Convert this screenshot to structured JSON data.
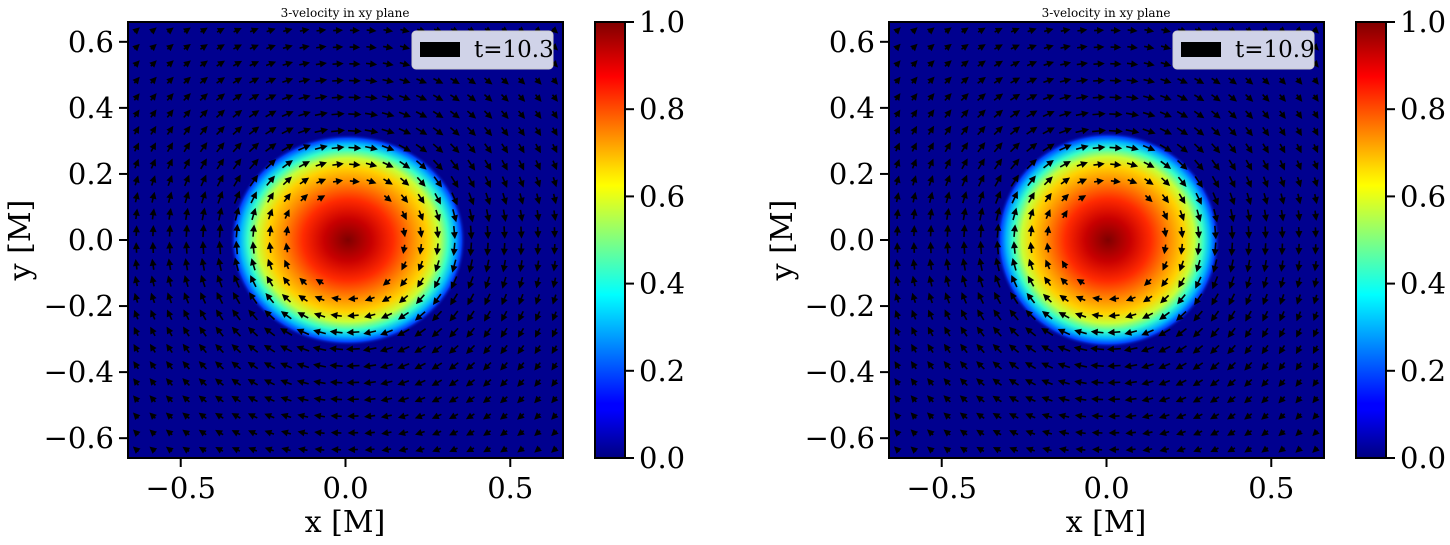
{
  "chart_data": [
    {
      "type": "heatmap",
      "subtype": "quiver",
      "title": "3-velocity in xy plane",
      "xlabel": "x [M]",
      "ylabel": "y [M]",
      "xlim": [
        -0.66,
        0.66
      ],
      "ylim": [
        -0.66,
        0.66
      ],
      "xticks": [
        -0.5,
        0.0,
        0.5
      ],
      "xtick_labels": [
        "−0.5",
        "0.0",
        "0.5"
      ],
      "yticks": [
        0.6,
        0.4,
        0.2,
        0.0,
        -0.2,
        -0.4,
        -0.6
      ],
      "ytick_labels": [
        "0.6",
        "0.4",
        "0.2",
        "0.0",
        "−0.2",
        "−0.4",
        "−0.6"
      ],
      "legend": {
        "label": "t=10.3",
        "placement": "upper-right"
      },
      "colorbar": {
        "colormap": "jet",
        "range": [
          0.0,
          1.0
        ],
        "ticks": [
          "0.0",
          "0.2",
          "0.4",
          "0.6",
          "0.8",
          "1.0"
        ]
      },
      "blob": {
        "center": [
          0.0,
          0.0
        ],
        "radius": 0.345,
        "peak": 1.0
      }
    },
    {
      "type": "heatmap",
      "subtype": "quiver",
      "title": "3-velocity in xy plane",
      "xlabel": "x [M]",
      "ylabel": "y [M]",
      "xlim": [
        -0.66,
        0.66
      ],
      "ylim": [
        -0.66,
        0.66
      ],
      "xticks": [
        -0.5,
        0.0,
        0.5
      ],
      "xtick_labels": [
        "−0.5",
        "0.0",
        "0.5"
      ],
      "yticks": [
        0.6,
        0.4,
        0.2,
        0.0,
        -0.2,
        -0.4,
        -0.6
      ],
      "ytick_labels": [
        "0.6",
        "0.4",
        "0.2",
        "0.0",
        "−0.2",
        "−0.4",
        "−0.6"
      ],
      "legend": {
        "label": "t=10.9",
        "placement": "upper-right"
      },
      "colorbar": {
        "colormap": "jet",
        "range": [
          0.0,
          1.0
        ],
        "ticks": [
          "0.0",
          "0.2",
          "0.4",
          "0.6",
          "0.8",
          "1.0"
        ]
      },
      "blob": {
        "center": [
          0.0,
          0.0
        ],
        "radius": 0.33,
        "peak": 1.0
      }
    }
  ]
}
